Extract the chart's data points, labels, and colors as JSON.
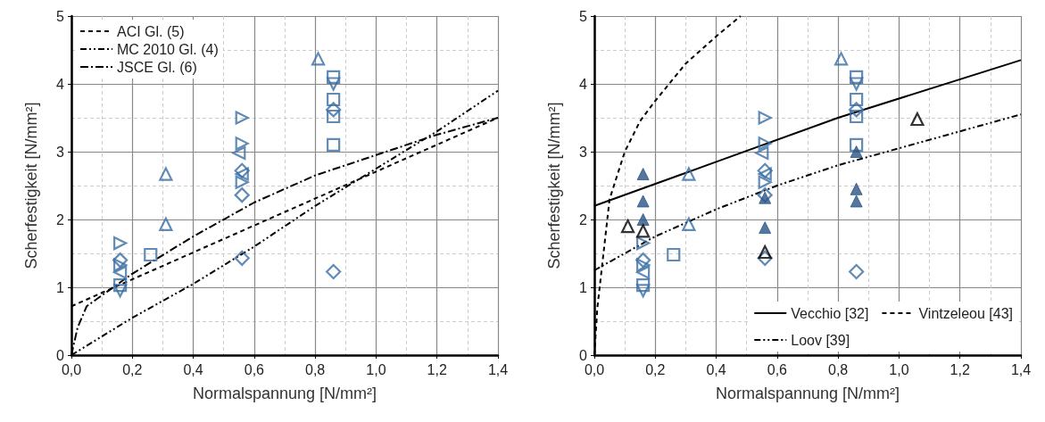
{
  "chart_data": [
    {
      "type": "scatter",
      "xlabel": "Normalspannung [N/mm²]",
      "ylabel": "Scherfestigkeit [N/mm²]",
      "xlim": [
        0,
        1.4
      ],
      "xticks": [
        {
          "value": 0,
          "label": "0,0"
        },
        {
          "value": 0.2,
          "label": "0,2"
        },
        {
          "value": 0.4,
          "label": "0,4"
        },
        {
          "value": 0.6,
          "label": "0,6"
        },
        {
          "value": 0.8,
          "label": "0,8"
        },
        {
          "value": 1.0,
          "label": "1,0"
        },
        {
          "value": 1.2,
          "label": "1,2"
        },
        {
          "value": 1.4,
          "label": "1,4"
        }
      ],
      "ylim": [
        0,
        5
      ],
      "yticks": [
        0,
        1,
        2,
        3,
        4,
        5
      ],
      "grid": true,
      "legend": "top left",
      "series": [
        {
          "type": "line",
          "name": "ACI Gl. (5)",
          "color": "#000000",
          "line_style": "dashed",
          "marker": "none",
          "x": [
            0,
            1.4
          ],
          "values": [
            0.72,
            3.5
          ]
        },
        {
          "type": "line",
          "name": "MC 2010 Gl. (4)",
          "color": "#000000",
          "line_style": "dashdotdot",
          "marker": "none",
          "x": [
            0,
            0.2,
            0.4,
            0.6,
            0.8,
            1.0,
            1.2,
            1.4
          ],
          "values": [
            0,
            0.55,
            1.05,
            1.6,
            2.2,
            2.75,
            3.3,
            3.9
          ]
        },
        {
          "type": "line",
          "name": "JSCE Gl. (6)",
          "color": "#000000",
          "line_style": "dashdot",
          "marker": "none",
          "x": [
            0,
            0.02,
            0.05,
            0.1,
            0.2,
            0.4,
            0.6,
            0.8,
            1.0,
            1.2,
            1.4
          ],
          "values": [
            0,
            0.4,
            0.72,
            0.88,
            1.2,
            1.75,
            2.25,
            2.65,
            2.95,
            3.25,
            3.5
          ]
        },
        {
          "color": "#3a6ea5",
          "marker": "triangle",
          "x": [
            0.31,
            0.31,
            0.81
          ],
          "values": [
            2.67,
            1.93,
            4.37
          ]
        },
        {
          "color": "#3a6ea5",
          "marker": "square",
          "x": [
            0.26,
            0.86,
            0.86,
            0.86,
            0.86,
            0.16
          ],
          "values": [
            1.48,
            4.1,
            3.77,
            3.52,
            3.1,
            1.03
          ]
        },
        {
          "color": "#3a6ea5",
          "marker": "diamond",
          "x": [
            0.56,
            0.86,
            0.86,
            0.56,
            0.16,
            0.56
          ],
          "values": [
            1.43,
            1.23,
            3.62,
            2.72,
            1.4,
            2.36
          ]
        },
        {
          "color": "#3a6ea5",
          "marker": "triangle-down",
          "x": [
            0.86,
            0.16
          ],
          "values": [
            4.0,
            0.95
          ]
        },
        {
          "color": "#3a6ea5",
          "marker": "triangle-right",
          "x": [
            0.56,
            0.56,
            0.16,
            0.56,
            0.16
          ],
          "values": [
            3.5,
            3.12,
            1.65,
            2.55,
            1.33
          ]
        },
        {
          "color": "#3a6ea5",
          "marker": "triangle-left",
          "x": [
            0.55,
            0.56,
            0.16
          ],
          "values": [
            2.98,
            2.67,
            1.22
          ]
        }
      ]
    },
    {
      "type": "scatter",
      "xlabel": "Normalspannung [N/mm²]",
      "ylabel": "Scherfestigkeit [N/mm²]",
      "xlim": [
        0,
        1.4
      ],
      "xticks": [
        {
          "value": 0,
          "label": "0,0"
        },
        {
          "value": 0.2,
          "label": "0,2"
        },
        {
          "value": 0.4,
          "label": "0,4"
        },
        {
          "value": 0.6,
          "label": "0,6"
        },
        {
          "value": 0.8,
          "label": "0,8"
        },
        {
          "value": 1.0,
          "label": "1,0"
        },
        {
          "value": 1.2,
          "label": "1,2"
        },
        {
          "value": 1.4,
          "label": "1,4"
        }
      ],
      "ylim": [
        0,
        5
      ],
      "yticks": [
        0,
        1,
        2,
        3,
        4,
        5
      ],
      "grid": true,
      "legend": "bottom right",
      "series": [
        {
          "type": "line",
          "name": "Vecchio [32]",
          "color": "#000000",
          "line_style": "solid",
          "marker": "none",
          "x": [
            0,
            0.4,
            0.8,
            1.4
          ],
          "values": [
            2.2,
            2.85,
            3.5,
            4.35
          ]
        },
        {
          "type": "line",
          "name": "Vintzeleou [43]",
          "color": "#000000",
          "line_style": "dashed",
          "marker": "none",
          "x": [
            0,
            0.01,
            0.03,
            0.05,
            0.1,
            0.15,
            0.2,
            0.3,
            0.4,
            0.48
          ],
          "values": [
            0,
            0.7,
            1.5,
            2.3,
            3.0,
            3.45,
            3.75,
            4.3,
            4.7,
            5.0
          ]
        },
        {
          "type": "line",
          "name": "Loov [39]",
          "color": "#000000",
          "line_style": "dashdotdot",
          "marker": "none",
          "x": [
            0,
            0.2,
            0.4,
            0.6,
            0.8,
            1.0,
            1.2,
            1.4
          ],
          "values": [
            1.25,
            1.75,
            2.15,
            2.5,
            2.8,
            3.05,
            3.3,
            3.55
          ]
        },
        {
          "color": "#3a6ea5",
          "marker": "triangle",
          "x": [
            0.31,
            0.31,
            0.81
          ],
          "values": [
            2.67,
            1.93,
            4.37
          ]
        },
        {
          "color": "#3a6ea5",
          "marker": "square",
          "x": [
            0.26,
            0.86,
            0.86,
            0.86,
            0.86,
            0.16
          ],
          "values": [
            1.48,
            4.1,
            3.77,
            3.52,
            3.1,
            1.03
          ]
        },
        {
          "color": "#3a6ea5",
          "marker": "diamond",
          "x": [
            0.56,
            0.86,
            0.86,
            0.56,
            0.16,
            0.56
          ],
          "values": [
            1.43,
            1.23,
            3.62,
            2.72,
            1.4,
            2.36
          ]
        },
        {
          "color": "#3a6ea5",
          "marker": "triangle-down",
          "x": [
            0.86,
            0.16
          ],
          "values": [
            4.0,
            0.95
          ]
        },
        {
          "color": "#3a6ea5",
          "marker": "triangle-right",
          "x": [
            0.56,
            0.56,
            0.16,
            0.56,
            0.16
          ],
          "values": [
            3.5,
            3.12,
            1.65,
            2.55,
            1.33
          ]
        },
        {
          "color": "#3a6ea5",
          "marker": "triangle-left",
          "x": [
            0.55,
            0.56,
            0.16
          ],
          "values": [
            2.98,
            2.67,
            1.22
          ]
        },
        {
          "color": "#2b5586",
          "marker": "triangle-filled",
          "x": [
            0.16,
            0.16,
            0.16,
            0.56,
            0.56,
            0.86,
            0.86,
            0.86
          ],
          "values": [
            2.67,
            2.27,
            2.0,
            2.32,
            1.88,
            3.0,
            2.45,
            2.27
          ]
        },
        {
          "color": "#000000",
          "marker": "triangle",
          "x": [
            0.11,
            0.16,
            1.06,
            0.56
          ],
          "values": [
            1.9,
            1.83,
            3.48,
            1.52
          ]
        }
      ]
    }
  ]
}
